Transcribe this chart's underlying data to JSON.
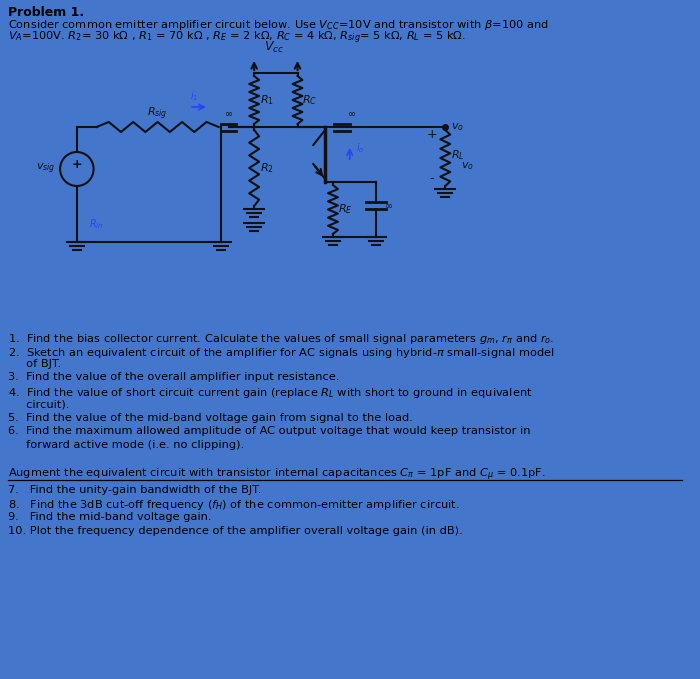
{
  "bg_color": "#4477cc",
  "circuit_color": "#111111",
  "blue_arrow": "#2244ff",
  "title": "Problem 1.",
  "header1": "Consider common emitter amplifier circuit below. Use $V_{CC}$=10V and transistor with $\\beta$=100 and",
  "header2": "$V_A$=100V. $R_2$= 30 k$\\Omega$ , $R_1$ = 70 k$\\Omega$ , $R_E$ = 2 k$\\Omega$, $R_C$ = 4 k$\\Omega$, $R_{sig}$= 5 k$\\Omega$, $R_L$ = 5 k$\\Omega$.",
  "q1": "1.  Find the bias collector current. Calculate the values of small signal parameters $g_m$, $r_{\\pi}$ and $r_o$.",
  "q2a": "2.  Sketch an equivalent circuit of the amplifier for AC signals using hybrid-$\\pi$ small-signal model",
  "q2b": "     of BJT.",
  "q3": "3.  Find the value of the overall amplifier input resistance.",
  "q4a": "4.  Find the value of short circuit current gain (replace $R_L$ with short to ground in equivalent",
  "q4b": "     circuit).",
  "q5": "5.  Find the value of the mid-band voltage gain from signal to the load.",
  "q6a": "6.  Find the maximum allowed amplitude of AC output voltage that would keep transistor in",
  "q6b": "     forward active mode (i.e. no clipping).",
  "aug": "Augment the equivalent circuit with transistor internal capacitances $C_{\\pi}$ = 1pF and $C_{\\mu}$ = 0.1pF.",
  "q7": "7.   Find the unity-gain bandwidth of the BJT.",
  "q8": "8.   Find the 3dB cut-off frequency ($f_H$) of the common-emitter amplifier circuit.",
  "q9": "9.   Find the mid-band voltage gain.",
  "q10": "10. Plot the frequency dependence of the amplifier overall voltage gain (in dB)."
}
